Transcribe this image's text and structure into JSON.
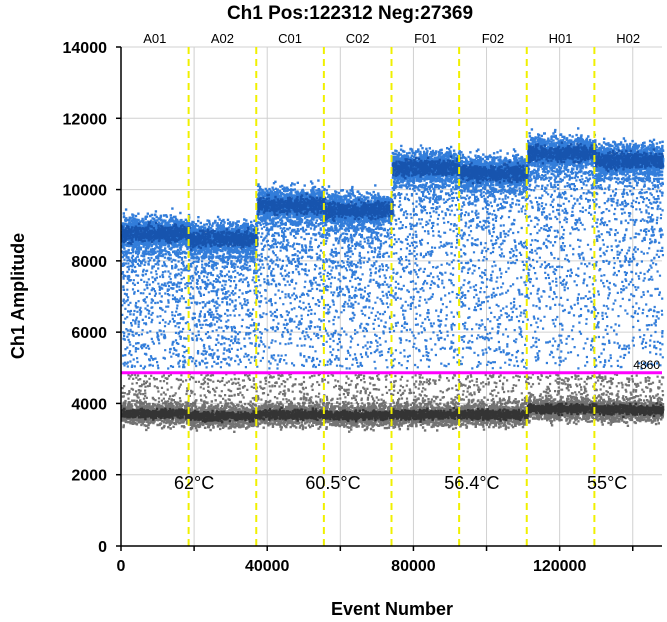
{
  "chart_data": {
    "type": "scatter",
    "title": "Ch1 Pos:122312 Neg:27369",
    "xlabel": "Event Number",
    "ylabel": "Ch1 Amplitude",
    "xlim": [
      0,
      148000
    ],
    "ylim": [
      0,
      14000
    ],
    "x_ticks": [
      0,
      40000,
      80000,
      120000
    ],
    "x_tick_labels": [
      "0",
      "40000",
      "80000",
      "120000"
    ],
    "y_ticks": [
      0,
      2000,
      4000,
      6000,
      8000,
      10000,
      12000,
      14000
    ],
    "y_tick_labels": [
      "0",
      "2000",
      "4000",
      "6000",
      "8000",
      "10000",
      "12000",
      "14000"
    ],
    "grid": true,
    "threshold": {
      "value": 4860,
      "label": "4860",
      "color": "#ff00ff"
    },
    "well_boundaries": [
      18500,
      37000,
      55500,
      74000,
      92500,
      111000,
      129500
    ],
    "boundary_color": "#f0f000",
    "wells": [
      {
        "label": "A01",
        "x_start": 0,
        "x_end": 18500,
        "pos_mean": 8800,
        "neg_mean": 3750
      },
      {
        "label": "A02",
        "x_start": 18500,
        "x_end": 37000,
        "pos_mean": 8650,
        "neg_mean": 3680
      },
      {
        "label": "C01",
        "x_start": 37000,
        "x_end": 55500,
        "pos_mean": 9600,
        "neg_mean": 3720
      },
      {
        "label": "C02",
        "x_start": 55500,
        "x_end": 74000,
        "pos_mean": 9450,
        "neg_mean": 3700
      },
      {
        "label": "F01",
        "x_start": 74000,
        "x_end": 92500,
        "pos_mean": 10650,
        "neg_mean": 3720
      },
      {
        "label": "F02",
        "x_start": 92500,
        "x_end": 111000,
        "pos_mean": 10500,
        "neg_mean": 3720
      },
      {
        "label": "H01",
        "x_start": 111000,
        "x_end": 129500,
        "pos_mean": 11050,
        "neg_mean": 3880
      },
      {
        "label": "H02",
        "x_start": 129500,
        "x_end": 148000,
        "pos_mean": 10850,
        "neg_mean": 3850
      }
    ],
    "temperatures": [
      {
        "label": "62°C",
        "x": 20000
      },
      {
        "label": "60.5°C",
        "x": 58000
      },
      {
        "label": "56.4°C",
        "x": 96000
      },
      {
        "label": "55°C",
        "x": 133000
      }
    ],
    "temperature_label_y": 1600,
    "colors": {
      "positive": "#1c6fd6",
      "positive_dense": "#1450a8",
      "negative": "#5a5a5a",
      "negative_dense": "#2e2e2e",
      "grid": "#d0d0d0"
    }
  }
}
